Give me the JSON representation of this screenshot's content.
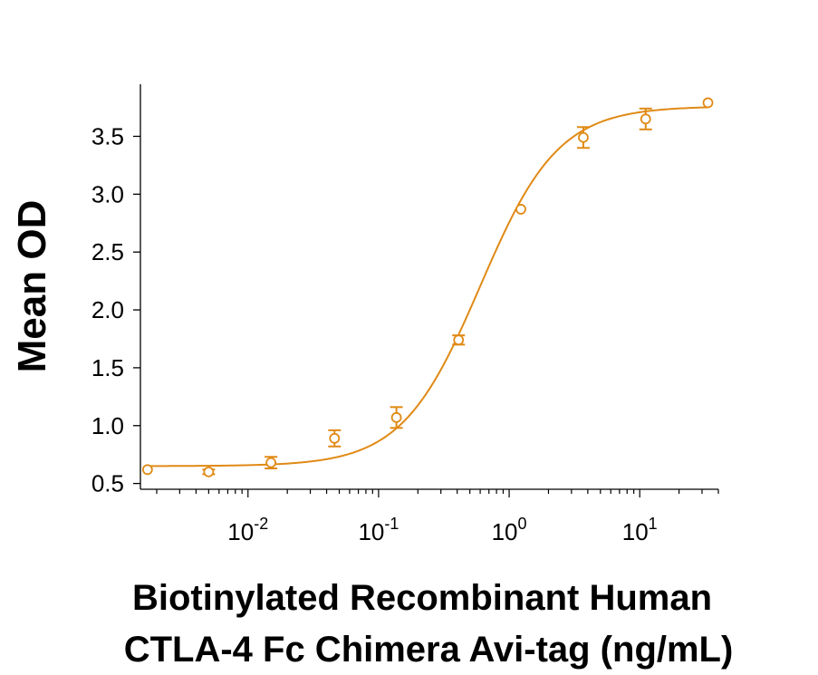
{
  "chart_data": {
    "type": "scatter",
    "title": "",
    "xlabel_line1": "Biotinylated Recombinant Human",
    "xlabel_line2": "CTLA-4 Fc Chimera Avi-tag (ng/mL)",
    "ylabel": "Mean OD",
    "xscale": "log",
    "xlim": [
      0.0015,
      40
    ],
    "ylim": [
      0.45,
      3.95
    ],
    "y_ticks": [
      {
        "value": 0.5,
        "label": "0.5"
      },
      {
        "value": 1.0,
        "label": "1.0"
      },
      {
        "value": 1.5,
        "label": "1.5"
      },
      {
        "value": 2.0,
        "label": "2.0"
      },
      {
        "value": 2.5,
        "label": "2.5"
      },
      {
        "value": 3.0,
        "label": "3.0"
      },
      {
        "value": 3.5,
        "label": "3.5"
      }
    ],
    "x_ticks": [
      {
        "value": 0.01,
        "base": "10",
        "exp": "-2"
      },
      {
        "value": 0.1,
        "base": "10",
        "exp": "-1"
      },
      {
        "value": 1,
        "base": "10",
        "exp": "0"
      },
      {
        "value": 10,
        "base": "10",
        "exp": "1"
      }
    ],
    "color": "#e08a16",
    "series": [
      {
        "points": [
          {
            "x": 0.0017,
            "y": 0.62,
            "err": 0.0
          },
          {
            "x": 0.005,
            "y": 0.6,
            "err": 0.02
          },
          {
            "x": 0.015,
            "y": 0.68,
            "err": 0.05
          },
          {
            "x": 0.046,
            "y": 0.89,
            "err": 0.07
          },
          {
            "x": 0.137,
            "y": 1.07,
            "err": 0.09
          },
          {
            "x": 0.41,
            "y": 1.74,
            "err": 0.04
          },
          {
            "x": 1.23,
            "y": 2.87,
            "err": 0.0
          },
          {
            "x": 3.7,
            "y": 3.49,
            "err": 0.09
          },
          {
            "x": 11.1,
            "y": 3.65,
            "err": 0.09
          },
          {
            "x": 33.3,
            "y": 3.79,
            "err": 0.0
          }
        ]
      }
    ],
    "grid": false,
    "legend": "none"
  }
}
